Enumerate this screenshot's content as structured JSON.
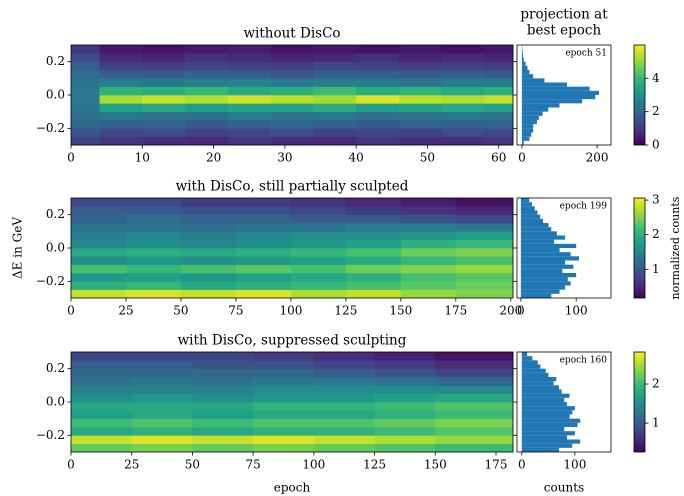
{
  "figure": {
    "ylabel": "ΔE in GeV",
    "colorbar_label": "normalized counts",
    "hist_title": [
      "projection at",
      "best epoch"
    ]
  },
  "chart_data": [
    {
      "type": "heatmap",
      "title": "without DisCo",
      "colormap": "viridis",
      "x_edges": [
        0,
        4,
        10,
        16,
        22,
        28,
        34,
        40,
        46,
        52,
        58,
        62
      ],
      "y_edges": [
        -0.3,
        -0.25,
        -0.2,
        -0.15,
        -0.1,
        -0.05,
        0,
        0.05,
        0.1,
        0.15,
        0.2,
        0.25,
        0.3
      ],
      "z": [
        [
          1.2,
          0.9,
          0.8,
          0.7,
          0.9,
          0.8,
          0.7,
          0.9,
          0.8,
          0.8,
          0.9
        ],
        [
          1.6,
          1.3,
          1.4,
          1.2,
          1.3,
          1.4,
          1.2,
          1.3,
          1.2,
          1.4,
          1.3
        ],
        [
          2.0,
          1.8,
          1.9,
          1.7,
          1.8,
          2.0,
          1.8,
          1.7,
          1.9,
          1.8,
          1.9
        ],
        [
          2.2,
          2.4,
          2.3,
          2.2,
          2.5,
          2.3,
          2.4,
          2.2,
          2.3,
          2.4,
          2.3
        ],
        [
          2.3,
          3.4,
          3.6,
          3.3,
          3.5,
          3.4,
          3.7,
          3.3,
          3.5,
          3.6,
          3.4
        ],
        [
          2.4,
          5.2,
          5.5,
          5.3,
          5.6,
          5.4,
          5.2,
          5.7,
          5.4,
          5.3,
          5.5
        ],
        [
          2.4,
          3.9,
          3.7,
          4.0,
          3.6,
          3.8,
          4.1,
          3.7,
          3.9,
          3.6,
          3.8
        ],
        [
          2.3,
          2.6,
          2.4,
          2.5,
          2.7,
          2.4,
          2.6,
          2.5,
          2.3,
          2.6,
          2.5
        ],
        [
          2.1,
          1.8,
          1.7,
          1.9,
          1.8,
          1.6,
          1.8,
          1.9,
          1.7,
          1.8,
          1.7
        ],
        [
          1.8,
          1.2,
          1.1,
          1.3,
          1.2,
          1.1,
          1.3,
          1.2,
          1.1,
          1.2,
          1.1
        ],
        [
          1.4,
          0.7,
          0.6,
          0.8,
          0.7,
          0.6,
          0.7,
          0.8,
          0.6,
          0.7,
          0.6
        ],
        [
          1.0,
          0.4,
          0.3,
          0.4,
          0.5,
          0.3,
          0.4,
          0.3,
          0.4,
          0.3,
          0.4
        ]
      ],
      "xlim": [
        0,
        62
      ],
      "ylim": [
        -0.3,
        0.3
      ],
      "xticks": [
        0,
        10,
        20,
        30,
        40,
        50,
        60
      ],
      "yticks": [
        0.2,
        {
          "value": 0,
          "label": "0.0"
        },
        {
          "value": -0.2,
          "label": "−0.2"
        }
      ],
      "clim": [
        0,
        6
      ],
      "cticks": [
        0,
        2,
        4
      ],
      "hist": {
        "type": "histogram",
        "annotation": "epoch 51",
        "color": "#1f77b4",
        "bins": [
          -0.3,
          -0.275,
          -0.25,
          -0.225,
          -0.2,
          -0.175,
          -0.15,
          -0.125,
          -0.1,
          -0.075,
          -0.05,
          -0.025,
          0,
          0.025,
          0.05,
          0.075,
          0.1,
          0.125,
          0.15,
          0.175,
          0.2,
          0.225,
          0.25,
          0.275,
          0.3
        ],
        "counts": [
          5,
          20,
          25,
          30,
          30,
          40,
          45,
          55,
          70,
          100,
          160,
          195,
          205,
          180,
          120,
          60,
          30,
          20,
          15,
          10,
          5,
          3,
          2,
          1
        ],
        "xlim": [
          -13,
          237
        ],
        "xticks": [
          0,
          200
        ]
      }
    },
    {
      "type": "heatmap",
      "title": "with DisCo, still partially sculpted",
      "colormap": "viridis",
      "x_edges": [
        0,
        25,
        50,
        75,
        100,
        125,
        150,
        175,
        201
      ],
      "y_edges": [
        -0.3,
        -0.25,
        -0.2,
        -0.15,
        -0.1,
        -0.05,
        0,
        0.05,
        0.1,
        0.15,
        0.2,
        0.25,
        0.3
      ],
      "z": [
        [
          2.8,
          2.9,
          2.8,
          2.9,
          2.7,
          2.8,
          2.6,
          2.5
        ],
        [
          2.0,
          2.1,
          1.9,
          2.0,
          2.1,
          2.2,
          2.3,
          2.4
        ],
        [
          1.7,
          1.8,
          1.7,
          1.8,
          1.9,
          2.0,
          2.2,
          2.3
        ],
        [
          2.2,
          2.1,
          2.2,
          2.3,
          2.2,
          2.4,
          2.5,
          2.6
        ],
        [
          1.6,
          1.7,
          1.6,
          1.7,
          1.8,
          1.9,
          2.1,
          2.2
        ],
        [
          1.9,
          2.0,
          1.9,
          2.0,
          2.1,
          2.2,
          2.4,
          2.5
        ],
        [
          1.5,
          1.6,
          1.5,
          1.6,
          1.7,
          1.8,
          2.0,
          2.1
        ],
        [
          1.4,
          1.5,
          1.4,
          1.5,
          1.6,
          1.6,
          1.7,
          1.8
        ],
        [
          1.3,
          1.3,
          1.2,
          1.3,
          1.3,
          1.4,
          1.4,
          1.3
        ],
        [
          1.1,
          1.2,
          1.1,
          1.1,
          1.0,
          1.0,
          0.9,
          0.8
        ],
        [
          1.0,
          1.0,
          0.9,
          0.9,
          0.8,
          0.7,
          0.6,
          0.5
        ],
        [
          0.8,
          0.8,
          0.7,
          0.7,
          0.6,
          0.5,
          0.4,
          0.3
        ]
      ],
      "xlim": [
        0,
        201
      ],
      "ylim": [
        -0.3,
        0.3
      ],
      "xticks": [
        0,
        25,
        50,
        75,
        100,
        125,
        150,
        175,
        200
      ],
      "yticks": [
        0.2,
        {
          "value": 0,
          "label": "0.0"
        },
        {
          "value": -0.2,
          "label": "−0.2"
        }
      ],
      "clim": [
        0.17,
        3.06
      ],
      "cticks": [
        1,
        2,
        3
      ],
      "hist": {
        "type": "histogram",
        "annotation": "epoch 199",
        "color": "#1f77b4",
        "bins": [
          -0.3,
          -0.275,
          -0.25,
          -0.225,
          -0.2,
          -0.175,
          -0.15,
          -0.125,
          -0.1,
          -0.075,
          -0.05,
          -0.025,
          0,
          0.025,
          0.05,
          0.075,
          0.1,
          0.125,
          0.15,
          0.175,
          0.2,
          0.225,
          0.25,
          0.275,
          0.3
        ],
        "counts": [
          55,
          70,
          80,
          90,
          85,
          100,
          75,
          95,
          80,
          105,
          90,
          70,
          100,
          60,
          80,
          65,
          55,
          50,
          40,
          35,
          30,
          25,
          20,
          15
        ],
        "xlim": [
          -7,
          163
        ],
        "xticks": [
          0,
          100
        ]
      }
    },
    {
      "type": "heatmap",
      "title": "with DisCo, suppressed sculpting",
      "colormap": "viridis",
      "xlabel": "epoch",
      "x_edges": [
        0,
        25,
        50,
        75,
        100,
        125,
        150,
        182
      ],
      "y_edges": [
        -0.3,
        -0.25,
        -0.2,
        -0.15,
        -0.1,
        -0.05,
        0,
        0.05,
        0.1,
        0.15,
        0.2,
        0.25,
        0.3
      ],
      "z": [
        [
          2.2,
          2.3,
          2.2,
          2.3,
          2.2,
          2.1,
          2.0
        ],
        [
          2.6,
          2.7,
          2.6,
          2.7,
          2.6,
          2.5,
          2.4
        ],
        [
          1.8,
          1.9,
          1.8,
          1.9,
          1.9,
          2.0,
          2.1
        ],
        [
          2.0,
          2.1,
          2.0,
          2.1,
          2.1,
          2.2,
          2.3
        ],
        [
          1.7,
          1.8,
          1.7,
          1.8,
          1.8,
          1.9,
          2.0
        ],
        [
          1.8,
          1.8,
          1.8,
          1.9,
          1.9,
          2.0,
          2.1
        ],
        [
          1.5,
          1.6,
          1.5,
          1.6,
          1.6,
          1.7,
          1.8
        ],
        [
          1.4,
          1.4,
          1.4,
          1.5,
          1.5,
          1.5,
          1.5
        ],
        [
          1.2,
          1.3,
          1.2,
          1.3,
          1.3,
          1.2,
          1.1
        ],
        [
          1.1,
          1.1,
          1.1,
          1.1,
          1.0,
          0.9,
          0.8
        ],
        [
          1.0,
          1.0,
          0.9,
          0.9,
          0.8,
          0.7,
          0.6
        ],
        [
          0.8,
          0.8,
          0.8,
          0.7,
          0.6,
          0.5,
          0.4
        ]
      ],
      "xlim": [
        0,
        182
      ],
      "ylim": [
        -0.3,
        0.3
      ],
      "xticks": [
        0,
        25,
        50,
        75,
        100,
        125,
        150,
        175
      ],
      "yticks": [
        0.2,
        {
          "value": 0,
          "label": "0.0"
        },
        {
          "value": -0.2,
          "label": "−0.2"
        }
      ],
      "clim": [
        0.26,
        2.82
      ],
      "cticks": [
        1,
        2
      ],
      "hist": {
        "type": "histogram",
        "annotation": "epoch 160",
        "color": "#1f77b4",
        "xlabel": "counts",
        "bins": [
          -0.3,
          -0.275,
          -0.25,
          -0.225,
          -0.2,
          -0.175,
          -0.15,
          -0.125,
          -0.1,
          -0.075,
          -0.05,
          -0.025,
          0,
          0.025,
          0.05,
          0.075,
          0.1,
          0.125,
          0.15,
          0.175,
          0.2,
          0.225,
          0.25,
          0.275,
          0.3
        ],
        "counts": [
          70,
          95,
          110,
          85,
          100,
          80,
          105,
          110,
          90,
          95,
          100,
          85,
          80,
          90,
          75,
          70,
          60,
          65,
          50,
          45,
          35,
          30,
          20,
          10
        ],
        "xlim": [
          -9,
          168
        ],
        "xticks": [
          0,
          100
        ]
      }
    }
  ]
}
